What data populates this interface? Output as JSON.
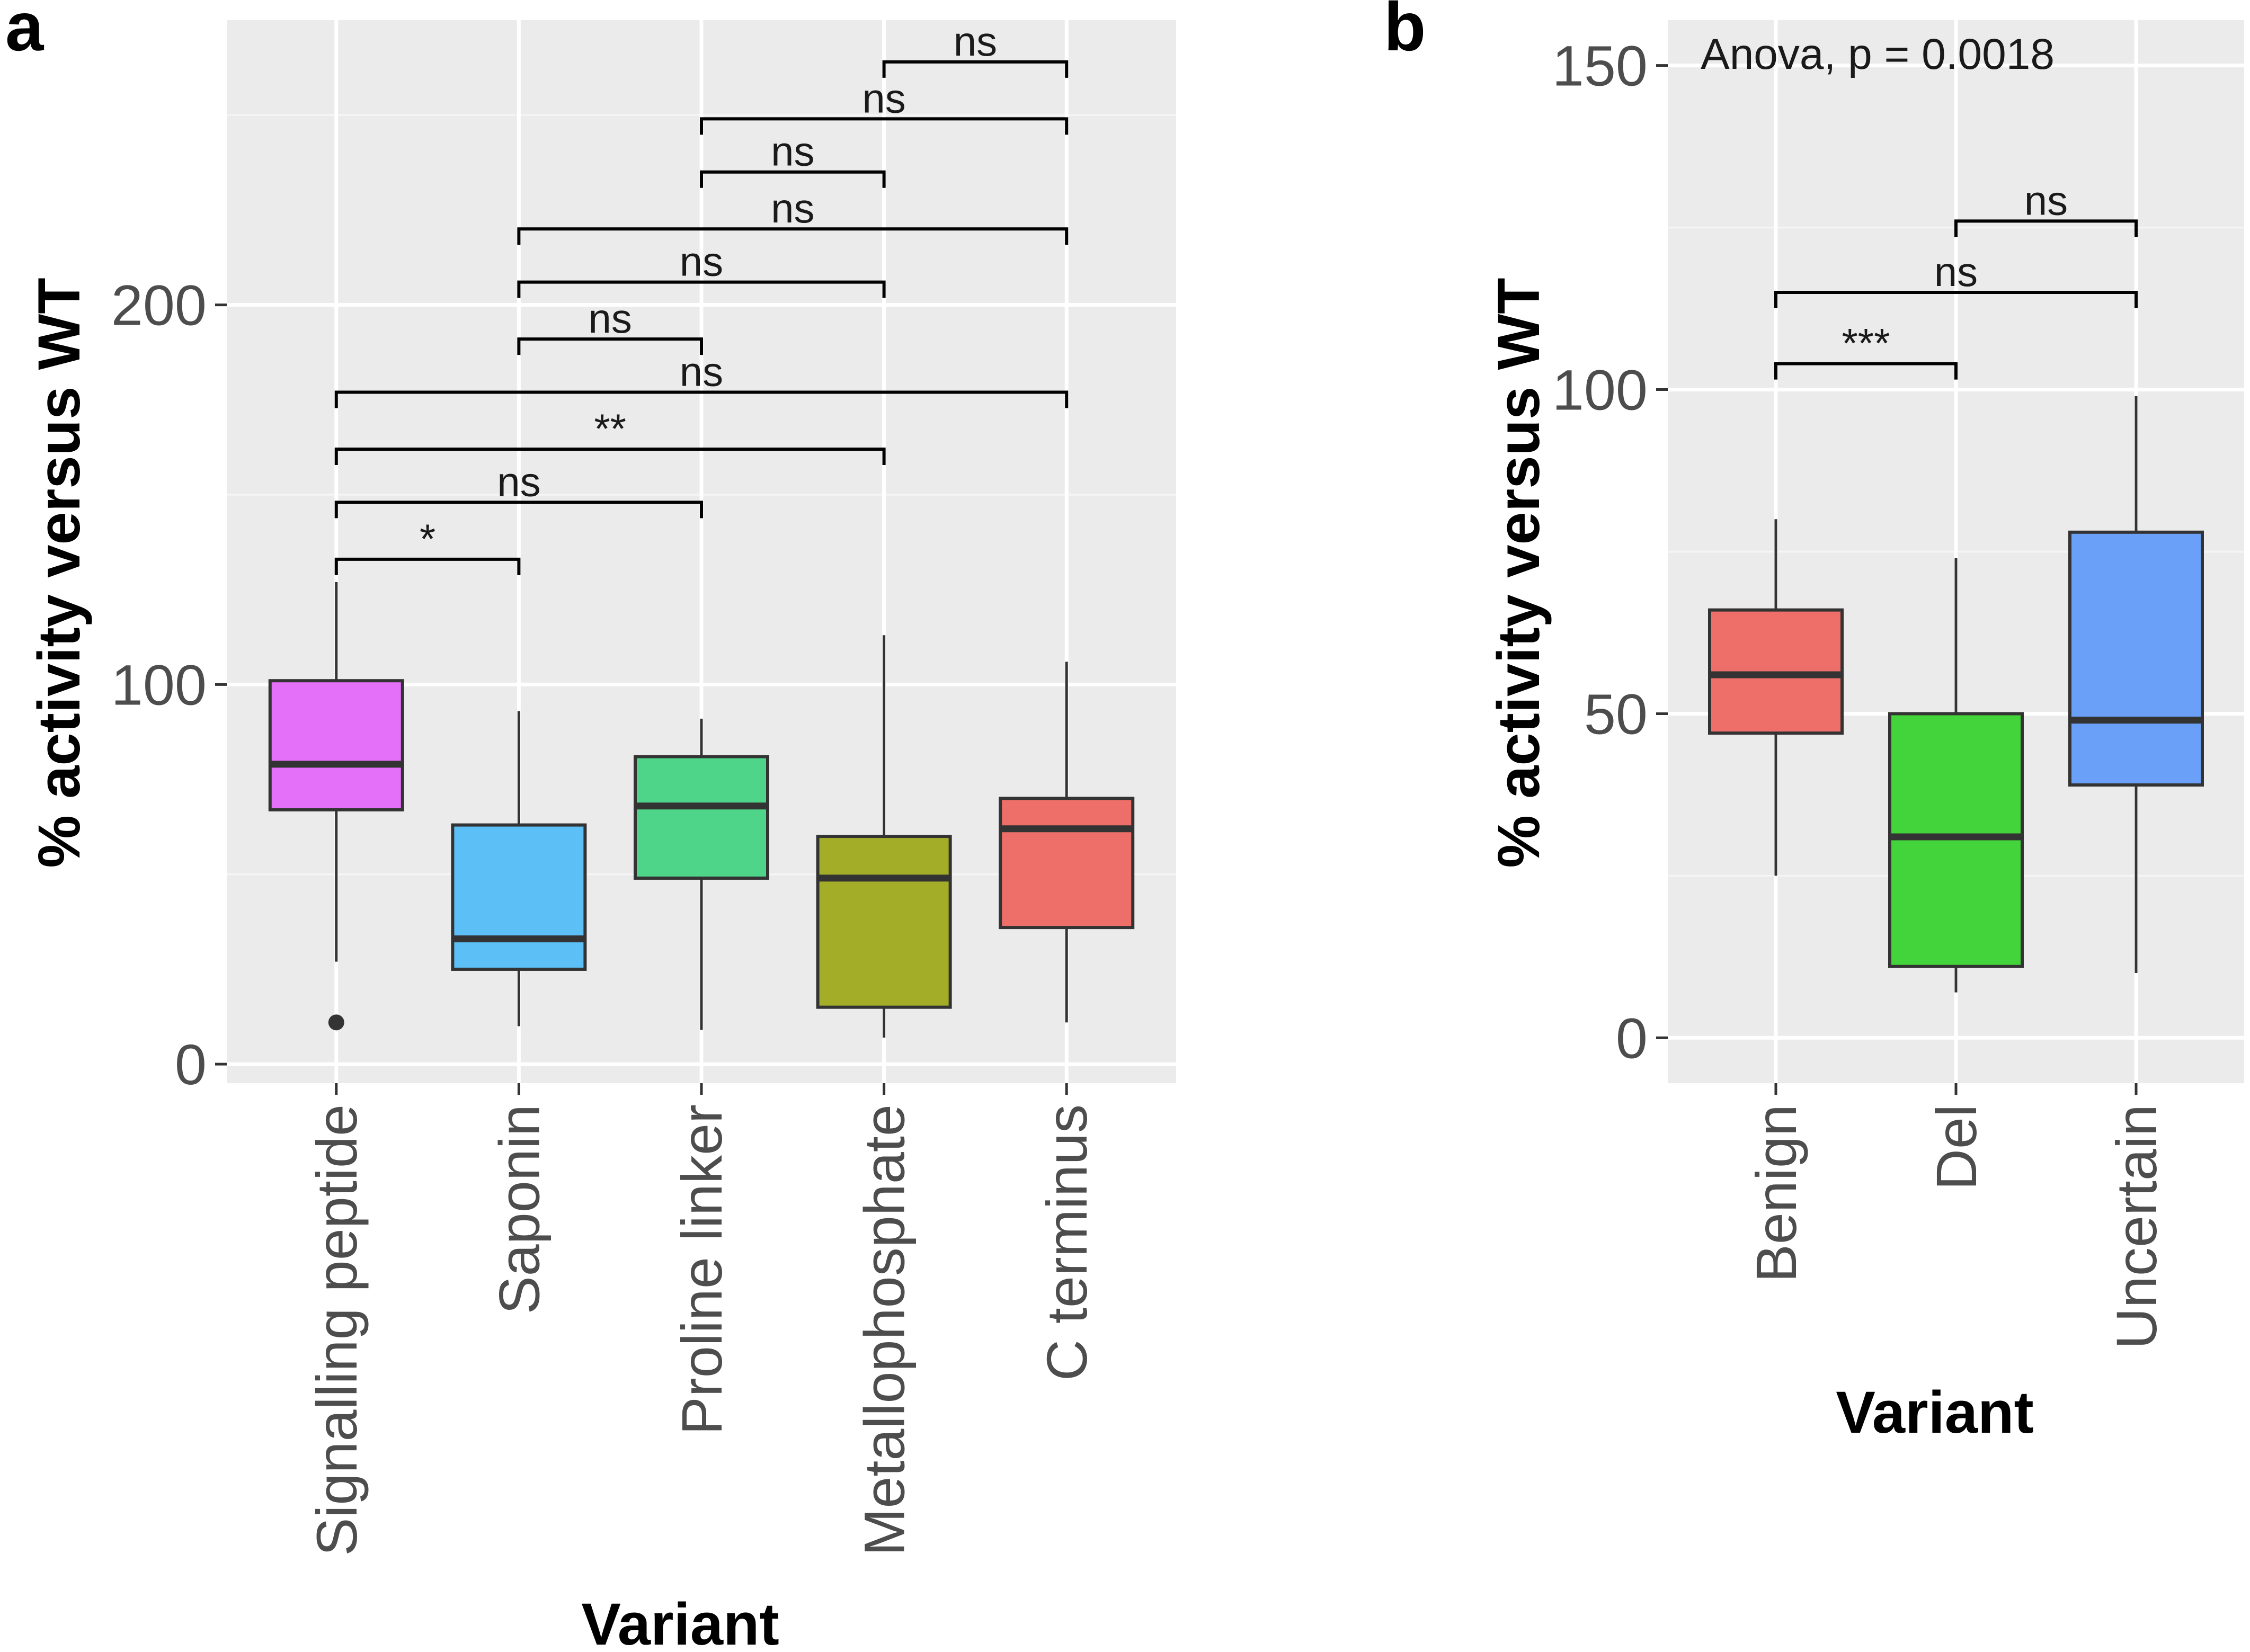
{
  "chart_data": [
    {
      "panel": "a",
      "type": "box",
      "xlabel": "Variant",
      "ylabel": "% activity versus WT",
      "ylim": [
        -5,
        275
      ],
      "yticks": [
        0,
        100,
        200
      ],
      "categories": [
        "Signalling peptide",
        "Saponin",
        "Proline linker",
        "Metallophosphate",
        "C terminus"
      ],
      "boxes": [
        {
          "category": "Signalling peptide",
          "whisker_low": 27,
          "q1": 67,
          "median": 79,
          "q3": 101,
          "whisker_high": 127,
          "outliers": [
            11
          ],
          "color": "#e46ff8"
        },
        {
          "category": "Saponin",
          "whisker_low": 10,
          "q1": 25,
          "median": 33,
          "q3": 63,
          "whisker_high": 93,
          "outliers": [],
          "color": "#5cbff6"
        },
        {
          "category": "Proline linker",
          "whisker_low": 9,
          "q1": 49,
          "median": 68,
          "q3": 81,
          "whisker_high": 91,
          "outliers": [],
          "color": "#4fd58a"
        },
        {
          "category": "Metallophosphate",
          "whisker_low": 7,
          "q1": 15,
          "median": 49,
          "q3": 60,
          "whisker_high": 113,
          "outliers": [],
          "color": "#a3ad28"
        },
        {
          "category": "C terminus",
          "whisker_low": 11,
          "q1": 36,
          "median": 62,
          "q3": 70,
          "whisker_high": 106,
          "outliers": [],
          "color": "#ee6f6a"
        }
      ],
      "comparisons": [
        {
          "from": "Signalling peptide",
          "to": "Saponin",
          "label": "*",
          "y": 133
        },
        {
          "from": "Signalling peptide",
          "to": "Proline linker",
          "label": "ns",
          "y": 148
        },
        {
          "from": "Signalling peptide",
          "to": "Metallophosphate",
          "label": "**",
          "y": 162
        },
        {
          "from": "Signalling peptide",
          "to": "C terminus",
          "label": "ns",
          "y": 177
        },
        {
          "from": "Saponin",
          "to": "Proline linker",
          "label": "ns",
          "y": 191
        },
        {
          "from": "Saponin",
          "to": "Metallophosphate",
          "label": "ns",
          "y": 206
        },
        {
          "from": "Saponin",
          "to": "C terminus",
          "label": "ns",
          "y": 220
        },
        {
          "from": "Proline linker",
          "to": "Metallophosphate",
          "label": "ns",
          "y": 235
        },
        {
          "from": "Proline linker",
          "to": "C terminus",
          "label": "ns",
          "y": 249
        },
        {
          "from": "Metallophosphate",
          "to": "C terminus",
          "label": "ns",
          "y": 264
        }
      ]
    },
    {
      "panel": "b",
      "type": "box",
      "xlabel": "Variant",
      "ylabel": "% activity versus WT",
      "ylim": [
        -7,
        157
      ],
      "yticks": [
        0,
        50,
        100,
        150
      ],
      "annotation": "Anova, p = 0.0018",
      "categories": [
        "Benign",
        "Del",
        "Uncertain"
      ],
      "boxes": [
        {
          "category": "Benign",
          "whisker_low": 25,
          "q1": 47,
          "median": 56,
          "q3": 66,
          "whisker_high": 80,
          "outliers": [],
          "color": "#ee6f6a"
        },
        {
          "category": "Del",
          "whisker_low": 7,
          "q1": 11,
          "median": 31,
          "q3": 50,
          "whisker_high": 74,
          "outliers": [],
          "color": "#43d43b"
        },
        {
          "category": "Uncertain",
          "whisker_low": 10,
          "q1": 39,
          "median": 49,
          "q3": 78,
          "whisker_high": 99,
          "outliers": [],
          "color": "#6aa0f8"
        }
      ],
      "comparisons": [
        {
          "from": "Benign",
          "to": "Del",
          "label": "***",
          "y": 104
        },
        {
          "from": "Benign",
          "to": "Uncertain",
          "label": "ns",
          "y": 115
        },
        {
          "from": "Del",
          "to": "Uncertain",
          "label": "ns",
          "y": 126
        }
      ]
    }
  ]
}
